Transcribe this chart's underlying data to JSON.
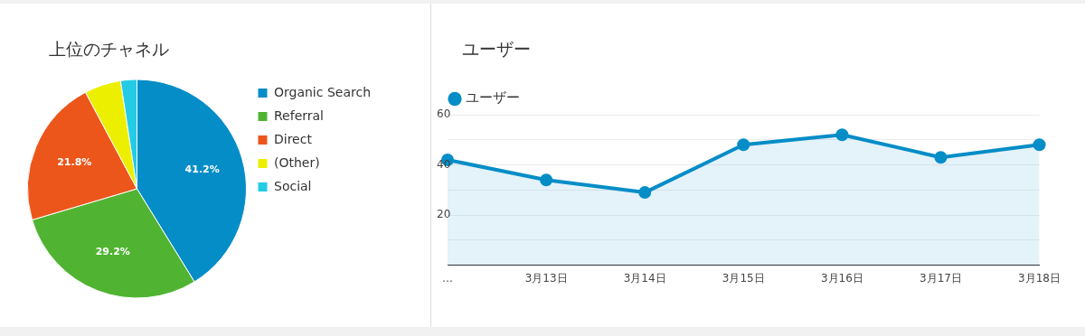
{
  "chart_data": [
    {
      "type": "pie",
      "title": "上位のチャネル",
      "categories": [
        "Organic Search",
        "Referral",
        "Direct",
        "(Other)",
        "Social"
      ],
      "values": [
        41.2,
        29.2,
        21.8,
        5.4,
        2.4
      ],
      "colors": [
        "#058dc7",
        "#50b432",
        "#ed561b",
        "#edef00",
        "#24cbe5"
      ],
      "value_labels": [
        "41.2%",
        "29.2%",
        "21.8%",
        null,
        null
      ],
      "legend": "right"
    },
    {
      "type": "area",
      "title": "ユーザー",
      "categories": [
        "…",
        "3月13日",
        "3月14日",
        "3月15日",
        "3月16日",
        "3月17日",
        "3月18日"
      ],
      "series": [
        {
          "name": "ユーザー",
          "color": "#058dc7",
          "values": [
            42,
            34,
            29,
            48,
            52,
            43,
            48
          ]
        }
      ],
      "ylim": [
        0,
        60
      ],
      "yticks": [
        {
          "value": 0,
          "label": null
        },
        {
          "value": 10,
          "label": null
        },
        20,
        {
          "value": 30,
          "label": null
        },
        40,
        {
          "value": 50,
          "label": null
        },
        60
      ],
      "grid": "y",
      "legend": "top left",
      "marker": "circle"
    }
  ]
}
